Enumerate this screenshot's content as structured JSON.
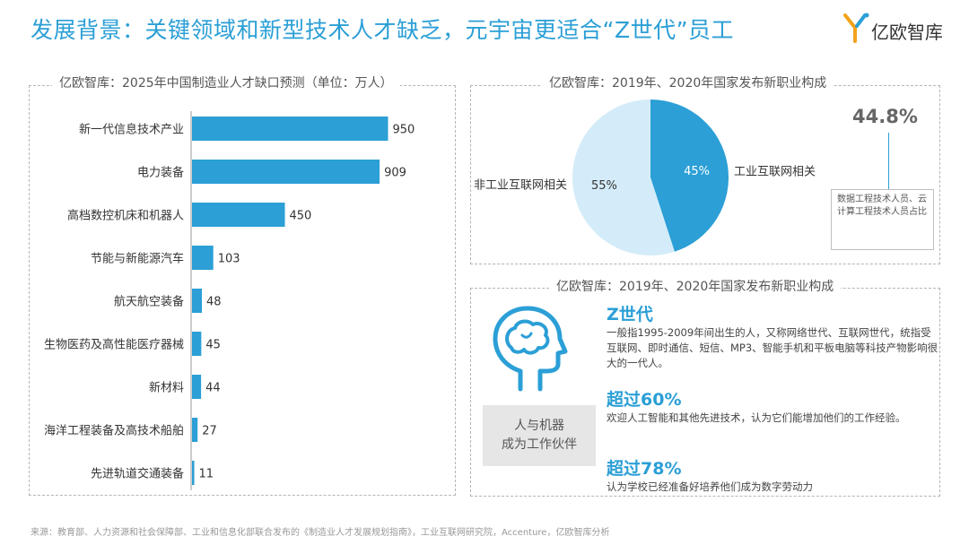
{
  "header": {
    "title": "发展背景：关键领域和新型技术人才缺乏，元宇宙更适合“Z世代”员工",
    "logo_text": "亿欧智库",
    "accent_color": "#2b9fd6"
  },
  "left_panel": {
    "title": "亿欧智库：2025年中国制造业人才缺口预测（单位：万人）"
  },
  "right_top_panel": {
    "title": "亿欧智库：2019年、2020年国家发布新职业构成",
    "callout_value": "44.8%",
    "callout_text": "数据工程技术人员、云计算工程技术人员占比"
  },
  "right_bottom_panel": {
    "title": "亿欧智库：2019年、2020年国家发布新职业构成",
    "icon": "head-brain-icon",
    "box_label_line1": "人与机器",
    "box_label_line2": "成为工作伙伴",
    "sections": [
      {
        "heading": "Z世代",
        "text": "一般指1995-2009年间出生的人，又称网络世代、互联网世代，统指受互联网、即时通信、短信、MP3、智能手机和平板电脑等科技产物影响很大的一代人。"
      },
      {
        "heading": "超过60%",
        "text": "欢迎人工智能和其他先进技术，认为它们能增加他们的工作经验。"
      },
      {
        "heading": "超过78%",
        "text": "认为学校已经准备好培养他们成为数字劳动力"
      }
    ]
  },
  "footer": {
    "source": "来源：教育部、人力资源和社会保障部、工业和信息化部联合发布的《制造业人才发展规划指南》，工业互联网研究院，Accenture，亿欧智库分析"
  },
  "chart_data": [
    {
      "type": "bar",
      "orientation": "horizontal",
      "categories": [
        "新一代信息技术产业",
        "电力装备",
        "高档数控机床和机器人",
        "节能与新能源汽车",
        "航天航空装备",
        "生物医药及高性能医疗器械",
        "新材料",
        "海洋工程装备及高技术船舶",
        "先进轨道交通装备"
      ],
      "values": [
        950,
        909,
        450,
        103,
        48,
        45,
        44,
        27,
        11
      ],
      "title": "亿欧智库：2025年中国制造业人才缺口预测（单位：万人）",
      "xlim": [
        0,
        1000
      ],
      "color": "#2b9fd6",
      "data_labels": true,
      "grid": false
    },
    {
      "type": "pie",
      "title": "亿欧智库：2019年、2020年国家发布新职业构成",
      "labels": [
        "工业互联网相关",
        "非工业互联网相关"
      ],
      "values": [
        45,
        55
      ],
      "value_labels": [
        "45%",
        "55%"
      ],
      "colors": [
        "#2b9fd6",
        "#d4ecf9"
      ]
    }
  ]
}
